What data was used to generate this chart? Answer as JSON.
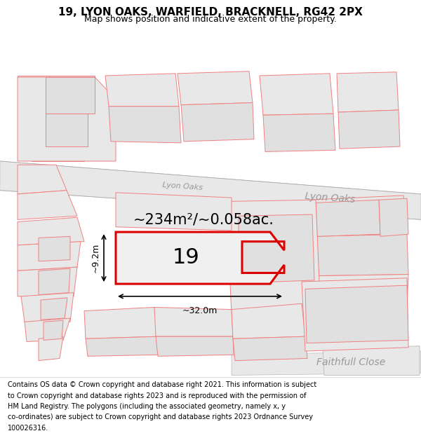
{
  "title": "19, LYON OAKS, WARFIELD, BRACKNELL, RG42 2PX",
  "subtitle": "Map shows position and indicative extent of the property.",
  "footer_lines": [
    "Contains OS data © Crown copyright and database right 2021. This information is subject",
    "to Crown copyright and database rights 2023 and is reproduced with the permission of",
    "HM Land Registry. The polygons (including the associated geometry, namely x, y",
    "co-ordinates) are subject to Crown copyright and database rights 2023 Ordnance Survey",
    "100026316."
  ],
  "area_text": "~234m²/~0.058ac.",
  "width_label": "~32.0m",
  "height_label": "~9.2m",
  "label_19": "19",
  "road_label_lyon": "Lyon Oaks",
  "road_label_lyon2": "Lyon Oaks",
  "road_label_faithfull": "Faithfull Close",
  "bg_color": "#f2f2f2",
  "map_bg": "#ffffff",
  "parcel_fill": "#e8e8e8",
  "parcel_edge": "#f08080",
  "main_fill": "#f0f0f0",
  "main_edge": "#dd0000",
  "road_fill": "#e0e0e0",
  "road_edge": "#cccccc",
  "title_fontsize": 11,
  "subtitle_fontsize": 9,
  "footer_fontsize": 7,
  "area_fontsize": 15,
  "label19_fontsize": 22,
  "dim_fontsize": 9,
  "road_fontsize": 10
}
